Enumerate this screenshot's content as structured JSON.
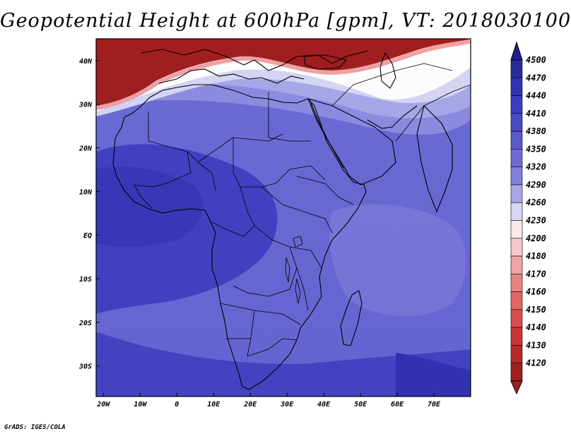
{
  "title": "Geopotential Height at 600hPa [gpm], VT: 2018030100",
  "credit": "GrADS: IGES/COLA",
  "map": {
    "lon_range": [
      -22,
      80
    ],
    "lat_range": [
      -37,
      45
    ],
    "lon_ticks": [
      "20W",
      "10W",
      "0",
      "10E",
      "20E",
      "30E",
      "40E",
      "50E",
      "60E",
      "70E"
    ],
    "lat_ticks": [
      "40N",
      "30N",
      "20N",
      "10N",
      "EQ",
      "10S",
      "20S",
      "30S"
    ]
  },
  "colorbar": {
    "levels": [
      "4500",
      "4470",
      "4440",
      "4410",
      "4380",
      "4350",
      "4320",
      "4290",
      "4260",
      "4230",
      "4200",
      "4180",
      "4170",
      "4160",
      "4150",
      "4140",
      "4130",
      "4120"
    ],
    "colors": [
      "#2a2a9e",
      "#3232b4",
      "#3c3cc2",
      "#4848c8",
      "#5a5acd",
      "#6c6cd6",
      "#8080dc",
      "#a8a8e8",
      "#d6d6f4",
      "#fbe8e8",
      "#f6c8c8",
      "#f0a2a2",
      "#e88282",
      "#e06666",
      "#d84c4c",
      "#cc3434",
      "#b82828",
      "#a01e1e"
    ]
  }
}
